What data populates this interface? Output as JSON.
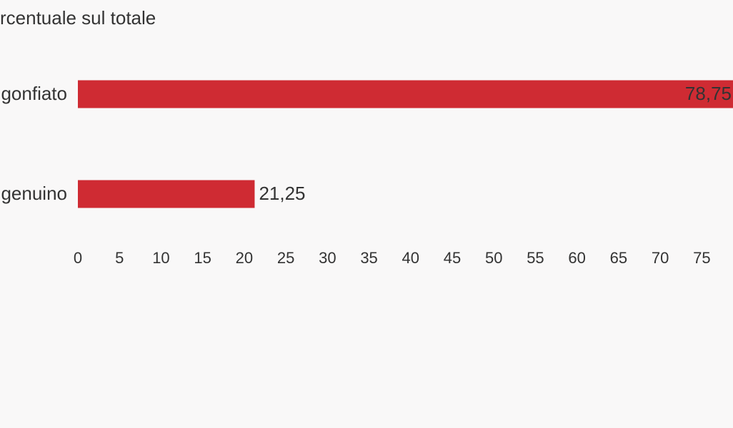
{
  "chart_data": {
    "type": "hbar",
    "title": "rcentuale sul totale",
    "categories": [
      "gonfiato",
      "genuino"
    ],
    "values": [
      78.75,
      21.25
    ],
    "value_labels": [
      "78,75",
      "21,25"
    ],
    "color": "#cf2b33",
    "xlim": [
      0,
      78.75
    ],
    "xticks": [
      0,
      5,
      10,
      15,
      20,
      25,
      30,
      35,
      40,
      45,
      50,
      55,
      60,
      65,
      70,
      75
    ]
  }
}
